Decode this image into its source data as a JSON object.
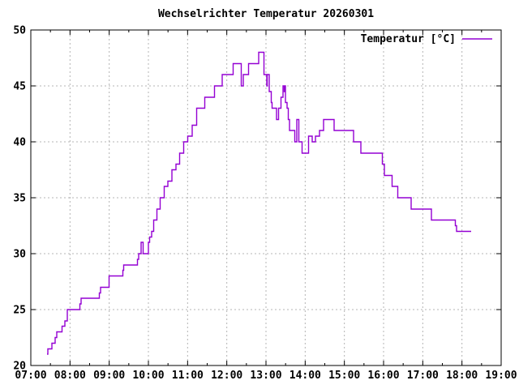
{
  "title": "Wechselrichter Temperatur 20260301",
  "legend": {
    "label": "Temperatur [°C]"
  },
  "colors": {
    "line": "#9400d3",
    "grid": "#b4b4b4",
    "axis": "#000000",
    "background": "#ffffff",
    "text": "#000000"
  },
  "chart_data": {
    "type": "line",
    "step": true,
    "title": "Wechselrichter Temperatur 20260301",
    "xlabel": "",
    "ylabel": "",
    "grid": true,
    "legend_position": "top-right",
    "ylim": [
      20,
      50
    ],
    "y_ticks": [
      20,
      25,
      30,
      35,
      40,
      45,
      50
    ],
    "xlim_hours": [
      7,
      19
    ],
    "x_ticks": [
      "07:00",
      "08:00",
      "09:00",
      "10:00",
      "11:00",
      "12:00",
      "13:00",
      "14:00",
      "15:00",
      "16:00",
      "17:00",
      "18:00",
      "19:00"
    ],
    "x_minor_every_hours": 0.5,
    "series": [
      {
        "name": "Temperatur [°C]",
        "color": "#9400d3",
        "points": [
          [
            "07:25",
            21
          ],
          [
            "07:26",
            21.5
          ],
          [
            "07:32",
            22
          ],
          [
            "07:37",
            22.5
          ],
          [
            "07:40",
            23
          ],
          [
            "07:48",
            23.5
          ],
          [
            "07:52",
            24
          ],
          [
            "07:56",
            25
          ],
          [
            "08:15",
            25.5
          ],
          [
            "08:17",
            26
          ],
          [
            "08:45",
            26.5
          ],
          [
            "08:47",
            27
          ],
          [
            "09:00",
            28
          ],
          [
            "09:21",
            28.5
          ],
          [
            "09:22",
            29
          ],
          [
            "09:43",
            29.5
          ],
          [
            "09:45",
            30
          ],
          [
            "09:49",
            31
          ],
          [
            "09:52",
            30
          ],
          [
            "10:00",
            31
          ],
          [
            "10:02",
            31.5
          ],
          [
            "10:05",
            32
          ],
          [
            "10:08",
            33
          ],
          [
            "10:13",
            34
          ],
          [
            "10:18",
            35
          ],
          [
            "10:24",
            36
          ],
          [
            "10:30",
            36.5
          ],
          [
            "10:36",
            37.5
          ],
          [
            "10:42",
            38
          ],
          [
            "10:48",
            39
          ],
          [
            "10:54",
            40
          ],
          [
            "11:00",
            40.5
          ],
          [
            "11:07",
            41.5
          ],
          [
            "11:14",
            43
          ],
          [
            "11:26",
            44
          ],
          [
            "11:41",
            45
          ],
          [
            "11:53",
            46
          ],
          [
            "12:10",
            47
          ],
          [
            "12:22",
            45
          ],
          [
            "12:25",
            46
          ],
          [
            "12:33",
            47
          ],
          [
            "12:49",
            48
          ],
          [
            "12:57",
            46
          ],
          [
            "13:01",
            45
          ],
          [
            "13:02",
            46
          ],
          [
            "13:05",
            44.5
          ],
          [
            "13:08",
            43.5
          ],
          [
            "13:09",
            43
          ],
          [
            "13:16",
            42
          ],
          [
            "13:19",
            43
          ],
          [
            "13:23",
            44
          ],
          [
            "13:26",
            45
          ],
          [
            "13:28",
            44.5
          ],
          [
            "13:29",
            45
          ],
          [
            "13:30",
            43.5
          ],
          [
            "13:32",
            43
          ],
          [
            "13:34",
            42
          ],
          [
            "13:36",
            41
          ],
          [
            "13:44",
            40
          ],
          [
            "13:47",
            42
          ],
          [
            "13:50",
            40
          ],
          [
            "13:55",
            39
          ],
          [
            "14:05",
            40.5
          ],
          [
            "14:11",
            40
          ],
          [
            "14:16",
            40.5
          ],
          [
            "14:22",
            41
          ],
          [
            "14:28",
            42
          ],
          [
            "14:44",
            41
          ],
          [
            "15:14",
            40
          ],
          [
            "15:25",
            39
          ],
          [
            "15:58",
            38
          ],
          [
            "16:01",
            37
          ],
          [
            "16:13",
            36
          ],
          [
            "16:22",
            35
          ],
          [
            "16:42",
            34
          ],
          [
            "17:13",
            33
          ],
          [
            "17:50",
            32.5
          ],
          [
            "17:52",
            32
          ],
          [
            "18:14",
            32
          ]
        ]
      }
    ]
  }
}
